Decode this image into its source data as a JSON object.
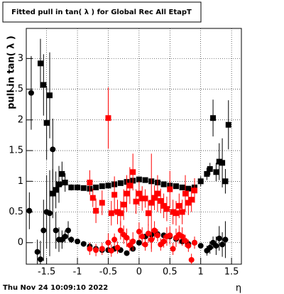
{
  "chart_data": {
    "type": "scatter",
    "title": "Fitted pull in tan( λ ) for Global Rec All EtapT",
    "y_label": "pull in tan( λ )",
    "x_label": "η",
    "timestamp": "Thu Nov 24 10:09:10 2022",
    "xlim": [
      -1.83,
      1.66
    ],
    "ylim": [
      -0.35,
      3.49
    ],
    "xticks": [
      -1.5,
      -1,
      -0.5,
      0,
      0.5,
      1,
      1.5
    ],
    "yticks": [
      0,
      0.5,
      1,
      1.5,
      2,
      2.5,
      3
    ],
    "grid": true,
    "series": [
      {
        "color": "#000000",
        "marker": "square",
        "x": [
          -1.6,
          -1.55,
          -1.5,
          -1.45,
          -1.4,
          -1.35,
          -1.3,
          -1.25,
          -1.2,
          -1.1,
          -1.0,
          -0.9,
          -0.8,
          -0.7,
          -0.6,
          -0.5,
          -0.4,
          -0.3,
          -0.2,
          -0.1,
          0,
          0.1,
          0.2,
          0.3,
          0.4,
          0.5,
          0.6,
          0.7,
          0.8,
          0.9,
          1.0,
          1.1,
          1.15,
          1.2,
          1.25,
          1.3,
          1.35,
          1.4,
          1.45
        ],
        "values": [
          2.92,
          2.57,
          1.95,
          2.4,
          0.8,
          0.86,
          0.95,
          1.12,
          0.98,
          0.9,
          0.9,
          0.89,
          0.88,
          0.9,
          0.92,
          0.93,
          0.95,
          0.97,
          0.99,
          1.01,
          1.03,
          1.02,
          1.0,
          0.98,
          0.95,
          0.93,
          0.92,
          0.9,
          0.88,
          0.9,
          1.0,
          1.12,
          1.2,
          2.03,
          1.15,
          1.32,
          1.3,
          1.0,
          1.92
        ],
        "errors": [
          0.4,
          0.5,
          0.6,
          0.7,
          0.4,
          0.3,
          0.3,
          0.2,
          0.15,
          0.05,
          0.04,
          0.03,
          0.03,
          0.03,
          0.03,
          0.03,
          0.03,
          0.03,
          0.03,
          0.03,
          0.03,
          0.03,
          0.03,
          0.03,
          0.03,
          0.03,
          0.03,
          0.03,
          0.04,
          0.05,
          0.08,
          0.1,
          0.1,
          0.3,
          0.15,
          0.3,
          0.4,
          0.2,
          0.4
        ]
      },
      {
        "color": "#000000",
        "marker": "circle",
        "x": [
          -1.78,
          -1.75,
          -1.65,
          -1.6,
          -1.55,
          -1.5,
          -1.45,
          -1.4,
          -1.35,
          -1.3,
          -1.25,
          -1.2,
          -1.15,
          -1.1,
          -1.0,
          -0.9,
          -0.8,
          -0.7,
          -0.6,
          -0.5,
          -0.4,
          -0.3,
          -0.2,
          -0.1,
          0,
          0.1,
          0.2,
          0.3,
          0.4,
          0.5,
          0.6,
          0.7,
          0.8,
          0.9,
          1.0,
          1.1,
          1.15,
          1.2,
          1.25,
          1.3,
          1.35,
          1.4
        ],
        "values": [
          0.52,
          2.44,
          -0.15,
          -0.27,
          0.2,
          0.5,
          0.48,
          1.52,
          0.2,
          0.05,
          0.05,
          0.1,
          0.2,
          0.05,
          0.02,
          -0.02,
          -0.06,
          -0.1,
          -0.12,
          -0.12,
          -0.1,
          -0.12,
          -0.17,
          -0.1,
          0.0,
          0.1,
          0.13,
          0.14,
          0.12,
          0.1,
          0.06,
          0.02,
          -0.02,
          0.0,
          -0.05,
          -0.13,
          -0.08,
          0.0,
          -0.05,
          0.07,
          -0.03,
          0.05
        ],
        "errors": [
          0.3,
          0.6,
          0.2,
          0.3,
          0.5,
          0.6,
          0.7,
          0.5,
          0.3,
          0.2,
          0.15,
          0.1,
          0.15,
          0.05,
          0.03,
          0.03,
          0.03,
          0.03,
          0.03,
          0.03,
          0.03,
          0.03,
          0.03,
          0.03,
          0.03,
          0.03,
          0.03,
          0.03,
          0.03,
          0.03,
          0.03,
          0.03,
          0.03,
          0.03,
          0.04,
          0.08,
          0.1,
          0.1,
          0.15,
          0.2,
          0.2,
          0.3
        ]
      },
      {
        "color": "#ff0000",
        "marker": "square",
        "x": [
          -0.8,
          -0.75,
          -0.7,
          -0.6,
          -0.5,
          -0.45,
          -0.4,
          -0.35,
          -0.3,
          -0.25,
          -0.2,
          -0.15,
          -0.1,
          -0.05,
          0,
          0.05,
          0.1,
          0.15,
          0.2,
          0.25,
          0.3,
          0.35,
          0.4,
          0.45,
          0.5,
          0.55,
          0.6,
          0.65,
          0.7,
          0.75,
          0.8,
          0.85,
          0.9
        ],
        "values": [
          0.98,
          0.73,
          0.52,
          0.65,
          2.03,
          0.48,
          0.78,
          0.5,
          0.48,
          0.62,
          0.8,
          0.93,
          1.15,
          0.67,
          0.8,
          0.72,
          0.72,
          0.48,
          0.65,
          0.73,
          0.8,
          0.68,
          0.6,
          0.55,
          0.87,
          0.5,
          0.48,
          0.6,
          0.5,
          0.8,
          0.65,
          0.7,
          0.85
        ],
        "errors": [
          0.2,
          0.15,
          0.2,
          0.2,
          0.5,
          0.2,
          0.3,
          0.2,
          0.2,
          0.25,
          0.3,
          0.3,
          0.3,
          0.2,
          0.2,
          0.2,
          0.15,
          0.2,
          0.8,
          0.2,
          0.3,
          0.2,
          0.2,
          0.2,
          0.3,
          0.2,
          0.2,
          0.2,
          0.2,
          0.3,
          0.2,
          0.2,
          0.2
        ]
      },
      {
        "color": "#ff0000",
        "marker": "circle",
        "x": [
          -0.8,
          -0.7,
          -0.6,
          -0.5,
          -0.45,
          -0.4,
          -0.35,
          -0.3,
          -0.25,
          -0.2,
          -0.15,
          -0.1,
          0,
          0.05,
          0.1,
          0.15,
          0.2,
          0.25,
          0.3,
          0.35,
          0.4,
          0.45,
          0.5,
          0.55,
          0.6,
          0.65,
          0.7,
          0.75,
          0.8,
          0.85,
          0.9
        ],
        "values": [
          -0.1,
          -0.12,
          -0.1,
          0.0,
          -0.13,
          0.05,
          -0.08,
          0.2,
          0.13,
          0.08,
          -0.04,
          0.02,
          0.18,
          0.1,
          -0.03,
          0.15,
          0.05,
          0.2,
          0.12,
          -0.03,
          0.02,
          0.1,
          0.12,
          -0.1,
          0.08,
          0.13,
          0.1,
          0.03,
          -0.05,
          -0.28,
          0.0
        ],
        "errors": [
          0.1,
          0.1,
          0.1,
          0.15,
          0.1,
          0.1,
          0.1,
          0.15,
          0.15,
          0.15,
          0.1,
          0.15,
          0.15,
          0.15,
          0.1,
          0.15,
          0.15,
          0.15,
          0.1,
          0.1,
          0.1,
          0.15,
          0.15,
          0.1,
          0.15,
          0.15,
          0.15,
          0.1,
          0.1,
          0.1,
          0.1
        ]
      }
    ]
  }
}
